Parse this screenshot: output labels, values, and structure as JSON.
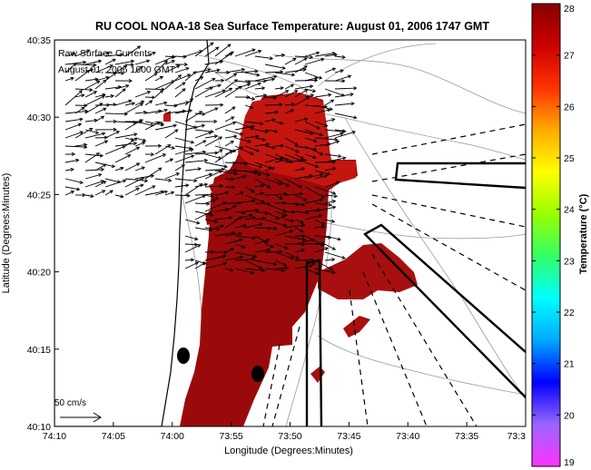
{
  "chart_data": {
    "type": "heatmap",
    "title": "RU COOL  NOAA-18  Sea Surface Temperature:  August 01, 2006 1747 GMT",
    "xlabel": "Longitude (Degrees:Minutes)",
    "ylabel": "Latitude (Degrees:Minutes)",
    "xlim": [
      -74.1667,
      -73.5
    ],
    "ylim": [
      40.1667,
      40.5833
    ],
    "x_ticks": [
      "74:10",
      "74:05",
      "74:00",
      "73:55",
      "73:50",
      "73:45",
      "73:40",
      "73:35",
      "73:3"
    ],
    "y_ticks": [
      "40:10",
      "40:15",
      "40:20",
      "40:25",
      "40:30",
      "40:35"
    ],
    "colorbar": {
      "label": "Temperature (°C)",
      "range": [
        19,
        28
      ],
      "ticks": [
        "28",
        "27",
        "26",
        "25",
        "24",
        "23",
        "22",
        "21",
        "20",
        "19"
      ],
      "colors": [
        "#ff33ff",
        "#9966ff",
        "#0000ff",
        "#00aaff",
        "#00ffff",
        "#33ff66",
        "#99ff00",
        "#ffff00",
        "#ffaa00",
        "#ff3300",
        "#cc0000",
        "#880000"
      ]
    },
    "legend_text": [
      "Raw Surface Currents",
      "August 01, 2006 1600 GMT"
    ],
    "scale_label": "50 cm/s",
    "sst_cells": [
      {
        "lon": -73.945,
        "lat": 40.29,
        "temp": 27.6
      },
      {
        "lon": -73.92,
        "lat": 40.44,
        "temp": 27.8
      },
      {
        "lon": -73.93,
        "lat": 40.35,
        "temp": 27.9
      },
      {
        "lon": -73.94,
        "lat": 40.25,
        "temp": 28.0
      },
      {
        "lon": -73.84,
        "lat": 40.46,
        "temp": 27.4
      },
      {
        "lon": -73.8,
        "lat": 40.42,
        "temp": 27.3
      },
      {
        "lon": -73.74,
        "lat": 40.32,
        "temp": 27.7
      }
    ],
    "points": [
      {
        "lon": -73.98,
        "lat": 40.245,
        "label": ""
      },
      {
        "lon": -73.87,
        "lat": 40.2,
        "label": ""
      }
    ]
  }
}
